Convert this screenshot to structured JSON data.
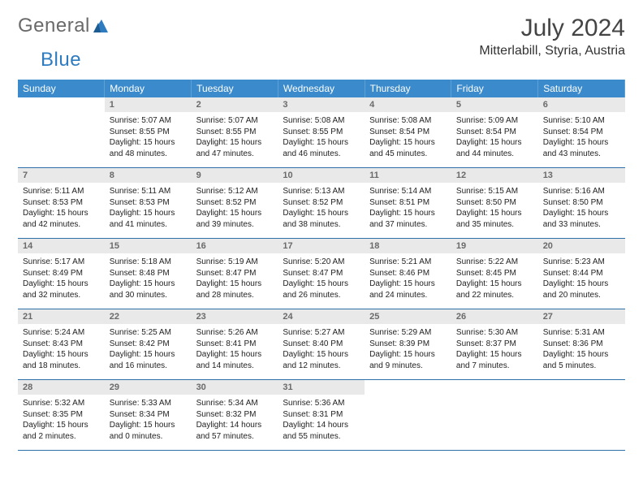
{
  "brand": {
    "part1": "General",
    "part2": "Blue",
    "accent_color": "#2f7bbf",
    "text_color": "#6a6a6a"
  },
  "title": "July 2024",
  "location": "Mitterlabill, Styria, Austria",
  "header_bg": "#3b8bcc",
  "daynum_bg": "#e9e9e9",
  "rule_color": "#2d6fa8",
  "weekdays": [
    "Sunday",
    "Monday",
    "Tuesday",
    "Wednesday",
    "Thursday",
    "Friday",
    "Saturday"
  ],
  "weeks": [
    [
      {
        "n": "",
        "sr": "",
        "ss": "",
        "dl": ""
      },
      {
        "n": "1",
        "sr": "Sunrise: 5:07 AM",
        "ss": "Sunset: 8:55 PM",
        "dl": "Daylight: 15 hours and 48 minutes."
      },
      {
        "n": "2",
        "sr": "Sunrise: 5:07 AM",
        "ss": "Sunset: 8:55 PM",
        "dl": "Daylight: 15 hours and 47 minutes."
      },
      {
        "n": "3",
        "sr": "Sunrise: 5:08 AM",
        "ss": "Sunset: 8:55 PM",
        "dl": "Daylight: 15 hours and 46 minutes."
      },
      {
        "n": "4",
        "sr": "Sunrise: 5:08 AM",
        "ss": "Sunset: 8:54 PM",
        "dl": "Daylight: 15 hours and 45 minutes."
      },
      {
        "n": "5",
        "sr": "Sunrise: 5:09 AM",
        "ss": "Sunset: 8:54 PM",
        "dl": "Daylight: 15 hours and 44 minutes."
      },
      {
        "n": "6",
        "sr": "Sunrise: 5:10 AM",
        "ss": "Sunset: 8:54 PM",
        "dl": "Daylight: 15 hours and 43 minutes."
      }
    ],
    [
      {
        "n": "7",
        "sr": "Sunrise: 5:11 AM",
        "ss": "Sunset: 8:53 PM",
        "dl": "Daylight: 15 hours and 42 minutes."
      },
      {
        "n": "8",
        "sr": "Sunrise: 5:11 AM",
        "ss": "Sunset: 8:53 PM",
        "dl": "Daylight: 15 hours and 41 minutes."
      },
      {
        "n": "9",
        "sr": "Sunrise: 5:12 AM",
        "ss": "Sunset: 8:52 PM",
        "dl": "Daylight: 15 hours and 39 minutes."
      },
      {
        "n": "10",
        "sr": "Sunrise: 5:13 AM",
        "ss": "Sunset: 8:52 PM",
        "dl": "Daylight: 15 hours and 38 minutes."
      },
      {
        "n": "11",
        "sr": "Sunrise: 5:14 AM",
        "ss": "Sunset: 8:51 PM",
        "dl": "Daylight: 15 hours and 37 minutes."
      },
      {
        "n": "12",
        "sr": "Sunrise: 5:15 AM",
        "ss": "Sunset: 8:50 PM",
        "dl": "Daylight: 15 hours and 35 minutes."
      },
      {
        "n": "13",
        "sr": "Sunrise: 5:16 AM",
        "ss": "Sunset: 8:50 PM",
        "dl": "Daylight: 15 hours and 33 minutes."
      }
    ],
    [
      {
        "n": "14",
        "sr": "Sunrise: 5:17 AM",
        "ss": "Sunset: 8:49 PM",
        "dl": "Daylight: 15 hours and 32 minutes."
      },
      {
        "n": "15",
        "sr": "Sunrise: 5:18 AM",
        "ss": "Sunset: 8:48 PM",
        "dl": "Daylight: 15 hours and 30 minutes."
      },
      {
        "n": "16",
        "sr": "Sunrise: 5:19 AM",
        "ss": "Sunset: 8:47 PM",
        "dl": "Daylight: 15 hours and 28 minutes."
      },
      {
        "n": "17",
        "sr": "Sunrise: 5:20 AM",
        "ss": "Sunset: 8:47 PM",
        "dl": "Daylight: 15 hours and 26 minutes."
      },
      {
        "n": "18",
        "sr": "Sunrise: 5:21 AM",
        "ss": "Sunset: 8:46 PM",
        "dl": "Daylight: 15 hours and 24 minutes."
      },
      {
        "n": "19",
        "sr": "Sunrise: 5:22 AM",
        "ss": "Sunset: 8:45 PM",
        "dl": "Daylight: 15 hours and 22 minutes."
      },
      {
        "n": "20",
        "sr": "Sunrise: 5:23 AM",
        "ss": "Sunset: 8:44 PM",
        "dl": "Daylight: 15 hours and 20 minutes."
      }
    ],
    [
      {
        "n": "21",
        "sr": "Sunrise: 5:24 AM",
        "ss": "Sunset: 8:43 PM",
        "dl": "Daylight: 15 hours and 18 minutes."
      },
      {
        "n": "22",
        "sr": "Sunrise: 5:25 AM",
        "ss": "Sunset: 8:42 PM",
        "dl": "Daylight: 15 hours and 16 minutes."
      },
      {
        "n": "23",
        "sr": "Sunrise: 5:26 AM",
        "ss": "Sunset: 8:41 PM",
        "dl": "Daylight: 15 hours and 14 minutes."
      },
      {
        "n": "24",
        "sr": "Sunrise: 5:27 AM",
        "ss": "Sunset: 8:40 PM",
        "dl": "Daylight: 15 hours and 12 minutes."
      },
      {
        "n": "25",
        "sr": "Sunrise: 5:29 AM",
        "ss": "Sunset: 8:39 PM",
        "dl": "Daylight: 15 hours and 9 minutes."
      },
      {
        "n": "26",
        "sr": "Sunrise: 5:30 AM",
        "ss": "Sunset: 8:37 PM",
        "dl": "Daylight: 15 hours and 7 minutes."
      },
      {
        "n": "27",
        "sr": "Sunrise: 5:31 AM",
        "ss": "Sunset: 8:36 PM",
        "dl": "Daylight: 15 hours and 5 minutes."
      }
    ],
    [
      {
        "n": "28",
        "sr": "Sunrise: 5:32 AM",
        "ss": "Sunset: 8:35 PM",
        "dl": "Daylight: 15 hours and 2 minutes."
      },
      {
        "n": "29",
        "sr": "Sunrise: 5:33 AM",
        "ss": "Sunset: 8:34 PM",
        "dl": "Daylight: 15 hours and 0 minutes."
      },
      {
        "n": "30",
        "sr": "Sunrise: 5:34 AM",
        "ss": "Sunset: 8:32 PM",
        "dl": "Daylight: 14 hours and 57 minutes."
      },
      {
        "n": "31",
        "sr": "Sunrise: 5:36 AM",
        "ss": "Sunset: 8:31 PM",
        "dl": "Daylight: 14 hours and 55 minutes."
      },
      {
        "n": "",
        "sr": "",
        "ss": "",
        "dl": ""
      },
      {
        "n": "",
        "sr": "",
        "ss": "",
        "dl": ""
      },
      {
        "n": "",
        "sr": "",
        "ss": "",
        "dl": ""
      }
    ]
  ]
}
